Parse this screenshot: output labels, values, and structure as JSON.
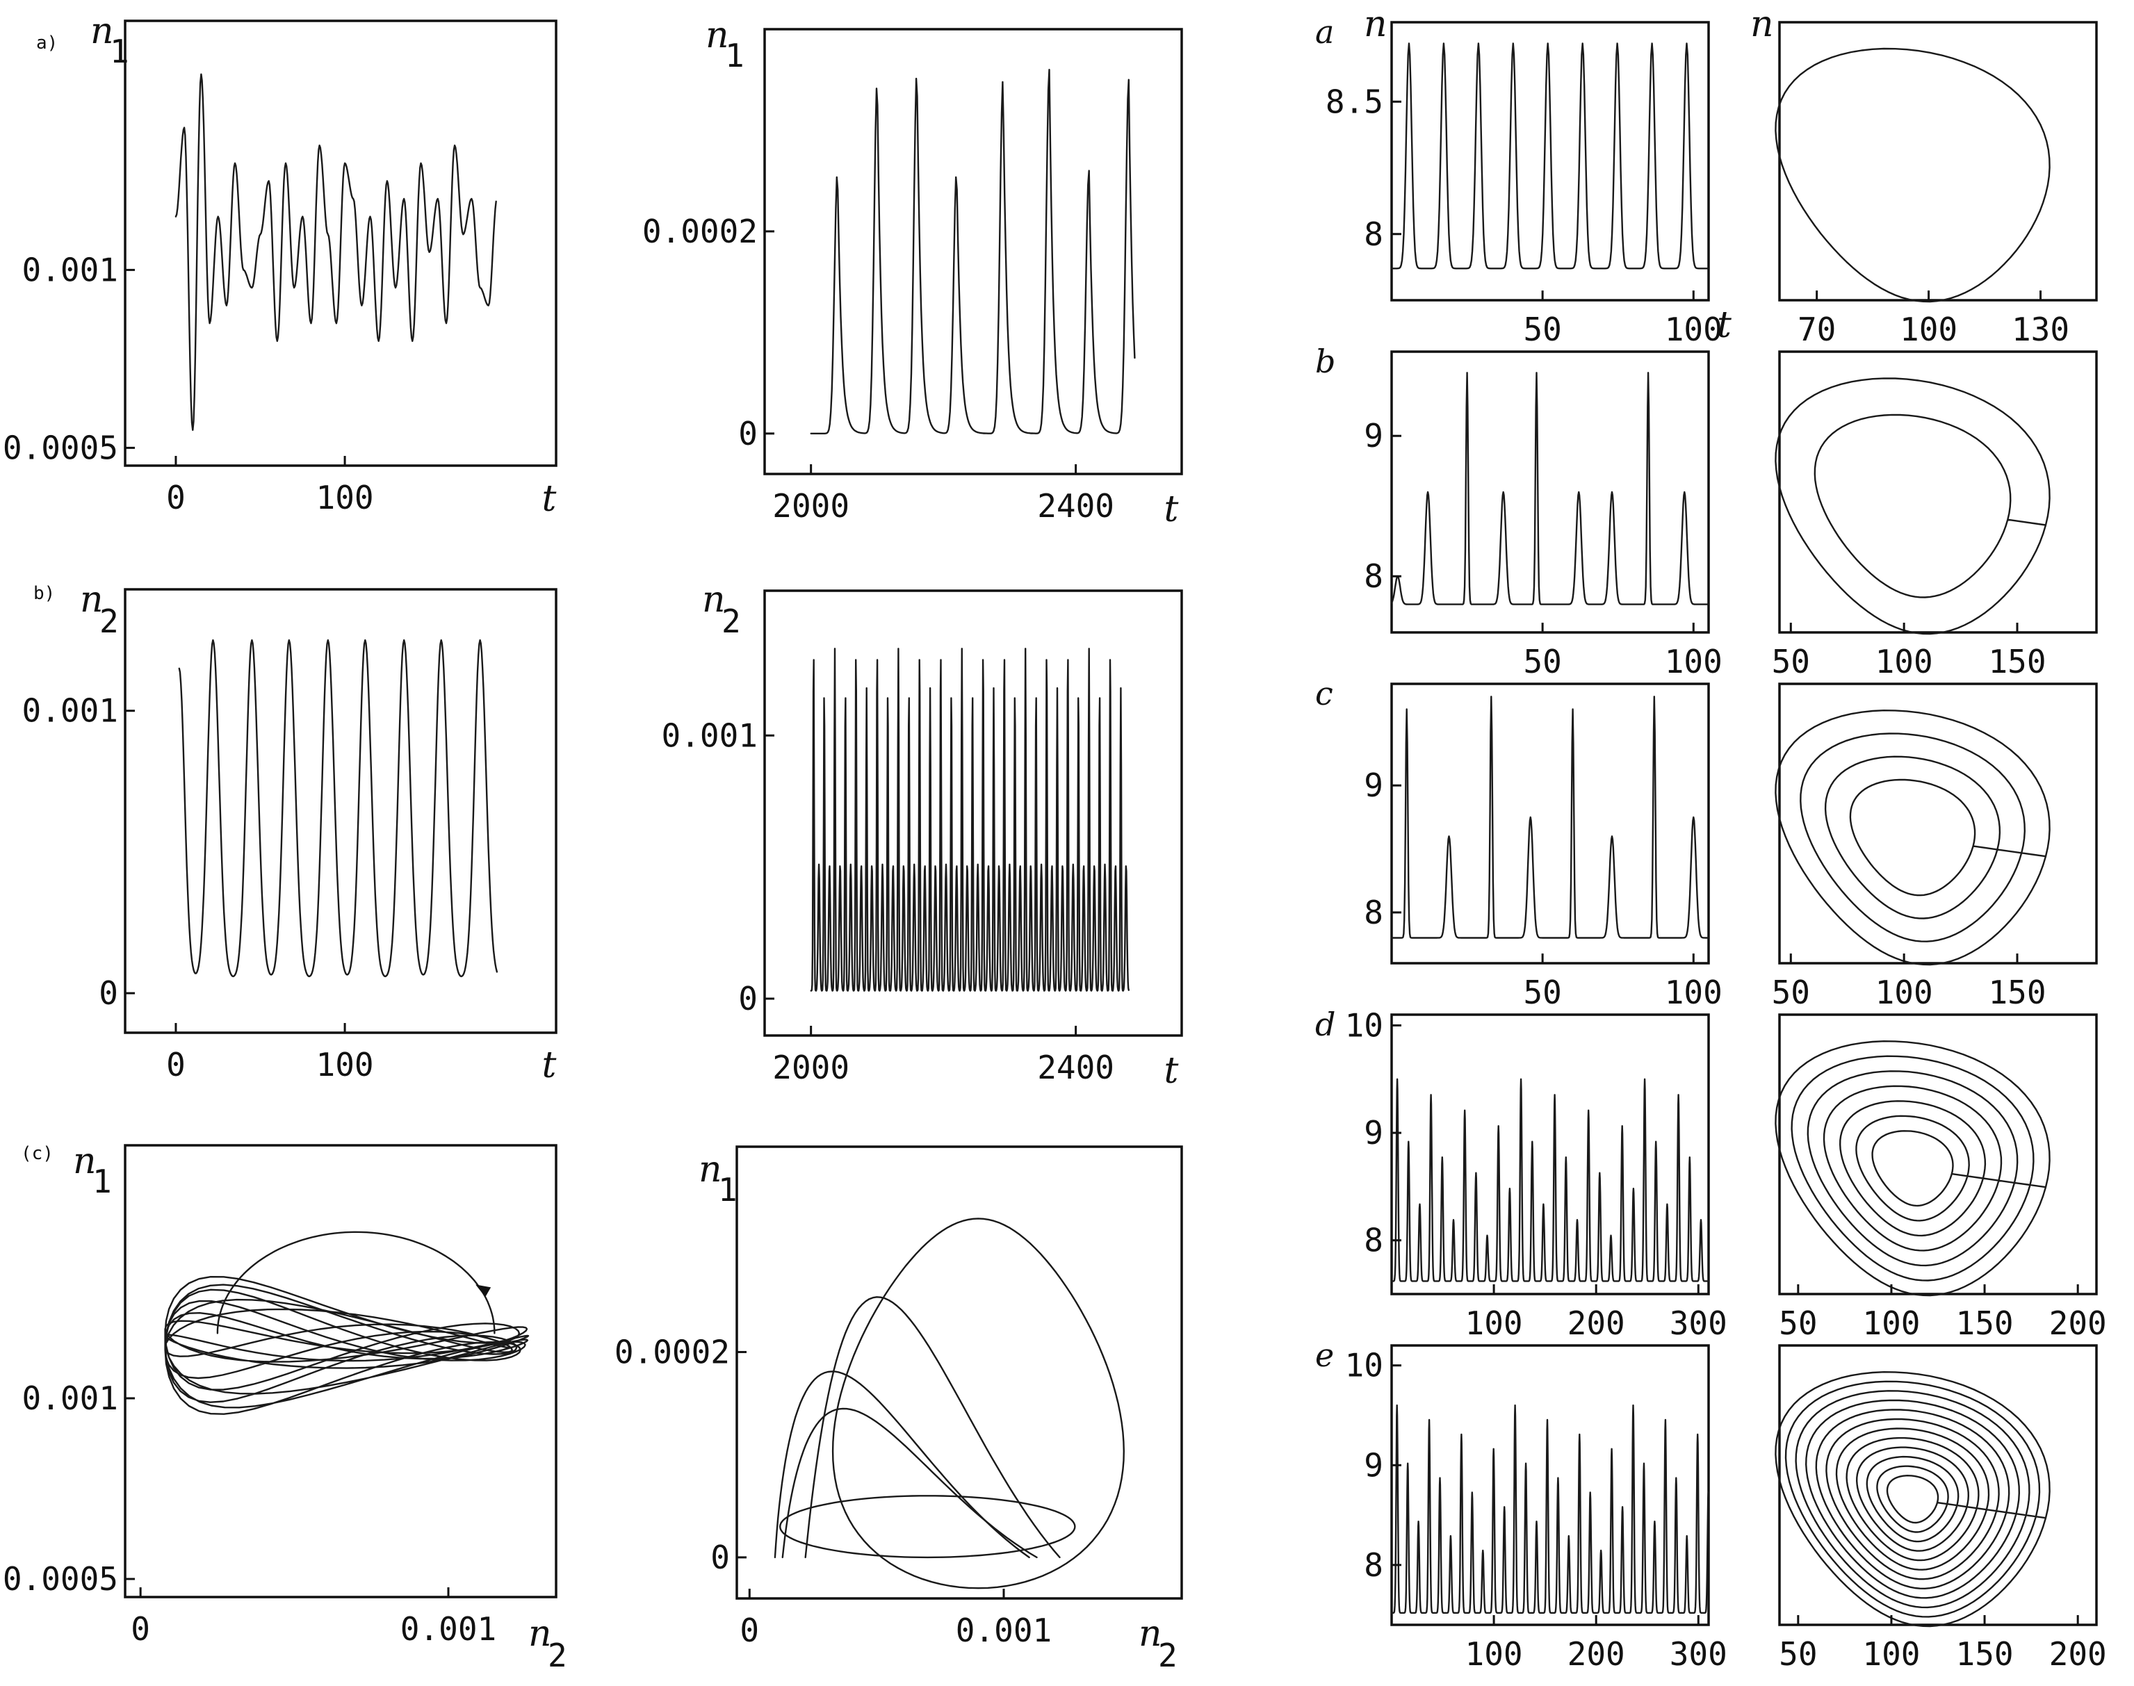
{
  "chart_data": [
    {
      "id": "a1",
      "type": "line",
      "panel_label": "a)",
      "ylabel": "n1",
      "xlabel": "t",
      "x_ticks": [
        "0",
        "100"
      ],
      "y_ticks": [
        "0.001",
        "0.0005"
      ],
      "xlim": [
        -30,
        225
      ],
      "ylim": [
        0.00045,
        0.0017
      ],
      "x": [
        0,
        5,
        10,
        15,
        20,
        25,
        30,
        35,
        40,
        45,
        50,
        55,
        60,
        65,
        70,
        75,
        80,
        85,
        90,
        95,
        100,
        105,
        110,
        115,
        120,
        125,
        130,
        135,
        140,
        145,
        150,
        155,
        160,
        165,
        170,
        175,
        180,
        185,
        190
      ],
      "y": [
        0.00115,
        0.0014,
        0.00055,
        0.00155,
        0.00085,
        0.00115,
        0.0009,
        0.0013,
        0.001,
        0.00095,
        0.0011,
        0.00125,
        0.0008,
        0.0013,
        0.00095,
        0.00115,
        0.00085,
        0.00135,
        0.0011,
        0.00085,
        0.0013,
        0.0012,
        0.0009,
        0.00115,
        0.0008,
        0.00125,
        0.00095,
        0.0012,
        0.0008,
        0.0013,
        0.00105,
        0.0012,
        0.00085,
        0.00135,
        0.0011,
        0.0012,
        0.00095,
        0.0009,
        0.0012
      ]
    },
    {
      "id": "a2",
      "type": "line",
      "ylabel": "n1",
      "xlabel": "t",
      "x_ticks": [
        "2000",
        "2400"
      ],
      "y_ticks": [
        "0.0002",
        "0"
      ],
      "xlim": [
        1930,
        2560
      ],
      "ylim": [
        -4e-05,
        0.0004
      ],
      "peak_t": [
        2040,
        2100,
        2160,
        2220,
        2290,
        2360,
        2420,
        2480
      ],
      "peak_h": [
        0.00026,
        0.00035,
        0.00036,
        0.00026,
        0.00035,
        0.00036,
        0.00026,
        0.00035
      ]
    },
    {
      "id": "b1",
      "type": "line",
      "panel_label": "b)",
      "ylabel": "n2",
      "xlabel": "t",
      "x_ticks": [
        "0",
        "100"
      ],
      "y_ticks": [
        "0.001",
        "0"
      ],
      "xlim": [
        -30,
        225
      ],
      "ylim": [
        -0.00014,
        0.00143
      ],
      "peak_t": [
        22,
        45,
        67,
        90,
        112,
        135,
        157,
        180
      ],
      "peak_h": 0.00125
    },
    {
      "id": "b2",
      "type": "line",
      "ylabel": "n2",
      "xlabel": "t",
      "x_ticks": [
        "2000",
        "2400"
      ],
      "y_ticks": [
        "0.001",
        "0"
      ],
      "xlim": [
        1930,
        2560
      ],
      "ylim": [
        -0.00014,
        0.00155
      ],
      "x_start": 2000,
      "x_end": 2480,
      "period": 16,
      "tall_h": 0.0013,
      "short_h": 0.00115,
      "low_h": 0.00048
    },
    {
      "id": "c1",
      "type": "line",
      "panel_label": "(c)",
      "ylabel": "n1",
      "xlabel": "n2",
      "x_ticks": [
        "0",
        "0.001"
      ],
      "y_ticks": [
        "0.001",
        "0.0005"
      ],
      "xlim": [
        -5e-05,
        0.00135
      ],
      "ylim": [
        0.00045,
        0.0017
      ]
    },
    {
      "id": "c2",
      "type": "line",
      "ylabel": "n1",
      "xlabel": "n2",
      "x_ticks": [
        "0",
        "0.001"
      ],
      "y_ticks": [
        "0.0002",
        "0"
      ],
      "xlim": [
        -5e-05,
        0.0017
      ],
      "ylim": [
        -4e-05,
        0.0004
      ]
    },
    {
      "id": "ra1",
      "type": "line",
      "panel_label": "a",
      "ylabel": "n",
      "xlabel": "t",
      "x_ticks": [
        "50",
        "100"
      ],
      "y_ticks": [
        "8.5",
        "8"
      ],
      "xlim": [
        0,
        105
      ],
      "ylim": [
        7.75,
        8.8
      ],
      "period": 11.5,
      "peak_h": 8.72
    },
    {
      "id": "ra2",
      "type": "line",
      "ylabel": "n",
      "xlabel": "",
      "x_ticks": [
        "70",
        "100",
        "130"
      ],
      "xlim": [
        60,
        145
      ],
      "ylim": [
        7.75,
        8.8
      ]
    },
    {
      "id": "rb1",
      "type": "line",
      "panel_label": "b",
      "x_ticks": [
        "50",
        "100"
      ],
      "y_ticks": [
        "9",
        "8"
      ],
      "xlim": [
        0,
        105
      ],
      "ylim": [
        7.6,
        9.6
      ],
      "peak_t": [
        2,
        12,
        25,
        37,
        48,
        62,
        73,
        85,
        97
      ],
      "peak_h": [
        8.0,
        8.6,
        9.45,
        8.6,
        9.45,
        8.6,
        8.6,
        9.45,
        8.6
      ]
    },
    {
      "id": "rb2",
      "type": "line",
      "x_ticks": [
        "50",
        "100",
        "150"
      ],
      "xlim": [
        45,
        185
      ],
      "ylim": [
        7.6,
        9.6
      ]
    },
    {
      "id": "rc1",
      "type": "line",
      "panel_label": "c",
      "x_ticks": [
        "50",
        "100"
      ],
      "y_ticks": [
        "9",
        "8"
      ],
      "xlim": [
        0,
        105
      ],
      "ylim": [
        7.6,
        9.8
      ],
      "peak_t": [
        5,
        19,
        33,
        46,
        60,
        73,
        87,
        100
      ],
      "peak_h": [
        9.6,
        8.6,
        9.7,
        8.75,
        9.6,
        8.6,
        9.7,
        8.75
      ]
    },
    {
      "id": "rc2",
      "type": "line",
      "x_ticks": [
        "50",
        "100",
        "150"
      ],
      "xlim": [
        45,
        185
      ],
      "ylim": [
        7.6,
        9.8
      ]
    },
    {
      "id": "rd1",
      "type": "line",
      "panel_label": "d",
      "x_ticks": [
        "100",
        "200",
        "300"
      ],
      "y_ticks": [
        "10",
        "9",
        "8"
      ],
      "xlim": [
        0,
        310
      ],
      "ylim": [
        7.5,
        10.1
      ],
      "period": 11
    },
    {
      "id": "rd2",
      "type": "line",
      "x_ticks": [
        "50",
        "100",
        "150",
        "200"
      ],
      "xlim": [
        40,
        210
      ],
      "ylim": [
        7.5,
        10.1
      ]
    },
    {
      "id": "re1",
      "type": "line",
      "panel_label": "e",
      "x_ticks": [
        "100",
        "200",
        "300"
      ],
      "y_ticks": [
        "10",
        "9",
        "8"
      ],
      "xlim": [
        0,
        310
      ],
      "ylim": [
        7.4,
        10.2
      ],
      "period": 10.5
    },
    {
      "id": "re2",
      "type": "line",
      "x_ticks": [
        "50",
        "100",
        "150",
        "200"
      ],
      "xlim": [
        40,
        210
      ],
      "ylim": [
        7.4,
        10.2
      ]
    }
  ]
}
